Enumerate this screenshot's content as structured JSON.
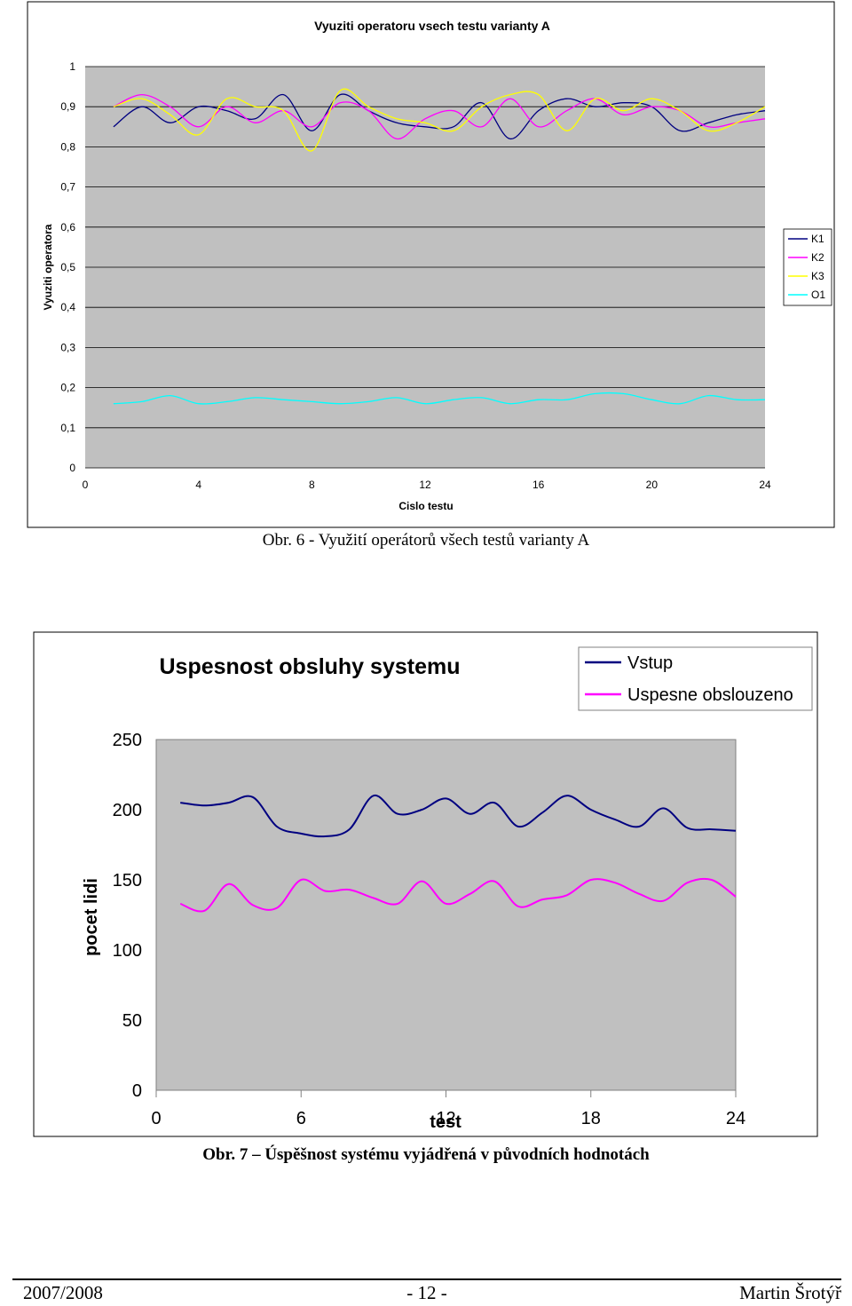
{
  "chart_data": [
    {
      "type": "line",
      "title": "Vyuziti operatoru vsech testu varianty A",
      "xlabel": "Cislo testu",
      "ylabel": "Vyuziti operatora",
      "xlim": [
        0,
        24
      ],
      "ylim": [
        0,
        1
      ],
      "xticks": [
        0,
        4,
        8,
        12,
        16,
        20,
        24
      ],
      "yticks": [
        "0",
        "0,1",
        "0,2",
        "0,3",
        "0,4",
        "0,5",
        "0,6",
        "0,7",
        "0,8",
        "0,9",
        "1"
      ],
      "grid": true,
      "legend": "right",
      "x": [
        1,
        2,
        3,
        4,
        5,
        6,
        7,
        8,
        9,
        10,
        11,
        12,
        13,
        14,
        15,
        16,
        17,
        18,
        19,
        20,
        21,
        22,
        23,
        24
      ],
      "series": [
        {
          "name": "K1",
          "color": "#000080",
          "values": [
            0.85,
            0.9,
            0.86,
            0.9,
            0.89,
            0.87,
            0.93,
            0.84,
            0.93,
            0.89,
            0.86,
            0.85,
            0.85,
            0.91,
            0.82,
            0.89,
            0.92,
            0.9,
            0.91,
            0.9,
            0.84,
            0.86,
            0.88,
            0.89
          ]
        },
        {
          "name": "K2",
          "color": "#ff00ff",
          "values": [
            0.9,
            0.93,
            0.9,
            0.85,
            0.9,
            0.86,
            0.89,
            0.85,
            0.91,
            0.89,
            0.82,
            0.87,
            0.89,
            0.85,
            0.92,
            0.85,
            0.89,
            0.92,
            0.88,
            0.9,
            0.89,
            0.85,
            0.86,
            0.87
          ]
        },
        {
          "name": "K3",
          "color": "#ffff00",
          "values": [
            0.9,
            0.92,
            0.88,
            0.83,
            0.92,
            0.9,
            0.89,
            0.79,
            0.94,
            0.9,
            0.87,
            0.86,
            0.84,
            0.9,
            0.93,
            0.93,
            0.84,
            0.92,
            0.89,
            0.92,
            0.89,
            0.84,
            0.86,
            0.9
          ]
        },
        {
          "name": "O1",
          "color": "#00ffff",
          "values": [
            0.16,
            0.165,
            0.18,
            0.16,
            0.165,
            0.175,
            0.17,
            0.165,
            0.16,
            0.165,
            0.175,
            0.16,
            0.17,
            0.175,
            0.16,
            0.17,
            0.17,
            0.185,
            0.185,
            0.17,
            0.16,
            0.18,
            0.17,
            0.17
          ]
        }
      ]
    },
    {
      "type": "line",
      "title": "Uspesnost obsluhy systemu",
      "xlabel": "test",
      "ylabel": "pocet lidi",
      "xlim": [
        0,
        24
      ],
      "ylim": [
        0,
        250
      ],
      "xticks": [
        0,
        6,
        12,
        18,
        24
      ],
      "yticks": [
        "0",
        "50",
        "100",
        "150",
        "200",
        "250"
      ],
      "grid": false,
      "legend": "top-right",
      "x": [
        1,
        2,
        3,
        4,
        5,
        6,
        7,
        8,
        9,
        10,
        11,
        12,
        13,
        14,
        15,
        16,
        17,
        18,
        19,
        20,
        21,
        22,
        23,
        24
      ],
      "series": [
        {
          "name": "Vstup",
          "color": "#000080",
          "values": [
            205,
            203,
            205,
            209,
            188,
            183,
            181,
            186,
            210,
            197,
            200,
            208,
            197,
            205,
            188,
            198,
            210,
            200,
            193,
            188,
            201,
            187,
            186,
            185
          ]
        },
        {
          "name": "Uspesne obslouzeno",
          "color": "#ff00ff",
          "values": [
            133,
            128,
            147,
            132,
            130,
            150,
            142,
            143,
            137,
            133,
            149,
            133,
            140,
            149,
            131,
            136,
            139,
            150,
            148,
            140,
            135,
            148,
            150,
            138
          ]
        }
      ]
    }
  ],
  "captions": {
    "fig6": "Obr. 6 - Využití operátorů všech testů varianty A",
    "fig7": "Obr. 7 – Úspěšnost systému vyjádřená v původních hodnotách"
  },
  "footer": {
    "left": "2007/2008",
    "center": "- 12 -",
    "right": "Martin Šrotýř"
  }
}
